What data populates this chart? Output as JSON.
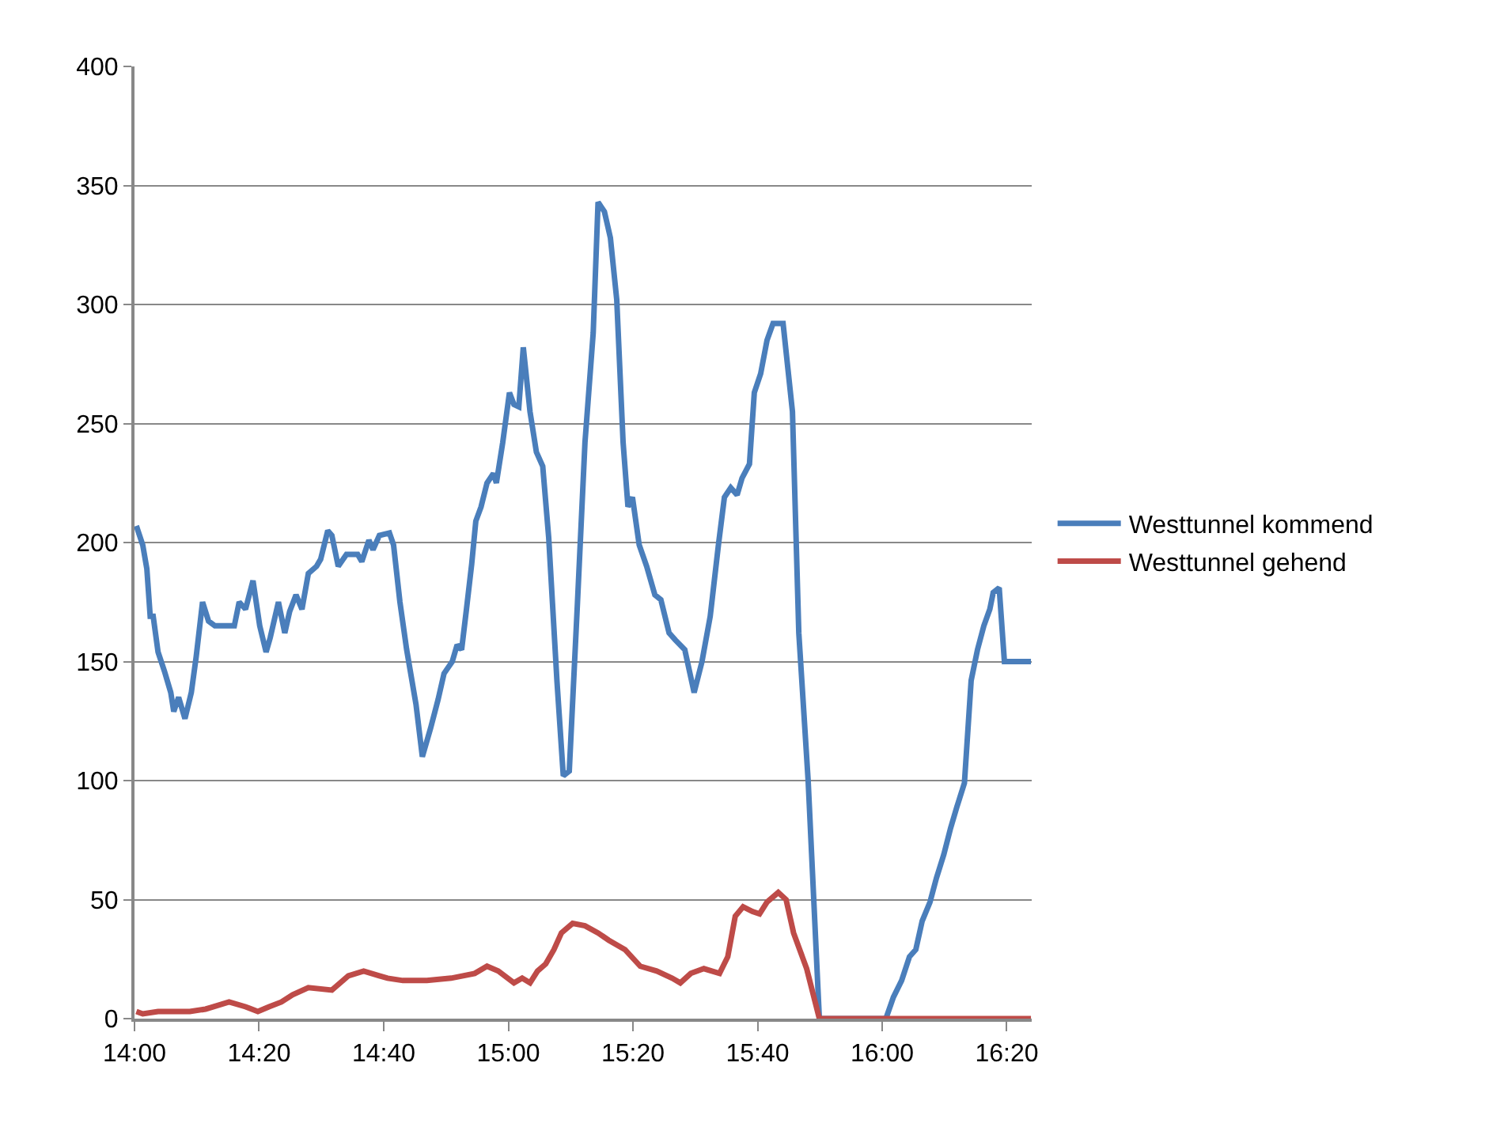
{
  "chart_data": {
    "type": "line",
    "xlim": [
      14,
      16.4
    ],
    "ylim": [
      0,
      400
    ],
    "yticks": [
      0,
      50,
      100,
      150,
      200,
      250,
      300,
      350,
      400
    ],
    "xticks": [
      {
        "value": 14,
        "label": "14:00"
      },
      {
        "value": 14.3333,
        "label": "14:20"
      },
      {
        "value": 14.6667,
        "label": "14:40"
      },
      {
        "value": 15,
        "label": "15:00"
      },
      {
        "value": 15.3333,
        "label": "15:20"
      },
      {
        "value": 15.6667,
        "label": "15:40"
      },
      {
        "value": 16,
        "label": "16:00"
      },
      {
        "value": 16.3333,
        "label": "16:20"
      }
    ],
    "grid": "y",
    "legend": "right",
    "marker": "none",
    "line_style": "solid",
    "series": [
      {
        "name": "Westtunnel kommend",
        "color": "#4a7ebb",
        "x": [
          14.005,
          14.022,
          14.033,
          14.042,
          14.05,
          14.063,
          14.08,
          14.097,
          14.105,
          14.118,
          14.135,
          14.152,
          14.165,
          14.182,
          14.198,
          14.215,
          14.267,
          14.28,
          14.297,
          14.317,
          14.335,
          14.352,
          14.363,
          14.385,
          14.402,
          14.415,
          14.432,
          14.448,
          14.465,
          14.487,
          14.498,
          14.517,
          14.528,
          14.545,
          14.567,
          14.597,
          14.608,
          14.627,
          14.638,
          14.655,
          14.682,
          14.693,
          14.71,
          14.728,
          14.753,
          14.77,
          14.792,
          14.812,
          14.828,
          14.85,
          14.863,
          14.875,
          14.888,
          14.902,
          14.913,
          14.927,
          14.943,
          14.96,
          14.968,
          14.985,
          15.003,
          15.015,
          15.028,
          15.04,
          15.058,
          15.075,
          15.092,
          15.108,
          15.13,
          15.147,
          15.163,
          15.185,
          15.205,
          15.227,
          15.24,
          15.257,
          15.273,
          15.29,
          15.307,
          15.32,
          15.332,
          15.35,
          15.37,
          15.392,
          15.408,
          15.43,
          15.447,
          15.472,
          15.497,
          15.518,
          15.54,
          15.562,
          15.578,
          15.595,
          15.612,
          15.625,
          15.645,
          15.658,
          15.675,
          15.692,
          15.708,
          15.735,
          15.76,
          15.777,
          15.802,
          15.832,
          16.01,
          16.03,
          16.052,
          16.073,
          16.09,
          16.107,
          16.128,
          16.145,
          16.165,
          16.183,
          16.2,
          16.22,
          16.238,
          16.255,
          16.272,
          16.288,
          16.297,
          16.313,
          16.327,
          16.398
        ],
        "values": [
          207,
          199,
          189,
          169,
          169,
          154,
          146,
          137,
          129,
          135,
          126,
          137,
          152,
          175,
          167,
          165,
          165,
          175,
          172,
          184,
          165,
          154,
          160,
          175,
          162,
          171,
          178,
          172,
          187,
          190,
          193,
          205,
          203,
          190,
          195,
          195,
          192,
          201,
          197,
          203,
          204,
          199,
          175,
          155,
          132,
          110,
          122,
          134,
          145,
          150,
          157,
          155,
          172,
          191,
          209,
          215,
          225,
          229,
          225,
          242,
          263,
          258,
          257,
          282,
          255,
          238,
          232,
          202,
          142,
          102,
          104,
          175,
          242,
          288,
          343,
          339,
          328,
          302,
          242,
          215,
          219,
          199,
          190,
          178,
          176,
          162,
          159,
          155,
          137,
          150,
          169,
          199,
          219,
          223,
          220,
          227,
          233,
          263,
          271,
          285,
          292,
          292,
          255,
          162,
          100,
          0,
          0,
          9,
          16,
          26,
          29,
          41,
          49,
          59,
          69,
          80,
          89,
          99,
          142,
          155,
          165,
          172,
          179,
          181,
          150,
          150
        ]
      },
      {
        "name": "Westtunnel gehend",
        "color": "#be4b48",
        "x": [
          14.005,
          14.022,
          14.063,
          14.148,
          14.19,
          14.253,
          14.297,
          14.33,
          14.36,
          14.393,
          14.423,
          14.465,
          14.528,
          14.572,
          14.613,
          14.655,
          14.677,
          14.718,
          14.782,
          14.847,
          14.91,
          14.943,
          14.973,
          15.015,
          15.037,
          15.058,
          15.078,
          15.1,
          15.122,
          15.142,
          15.172,
          15.205,
          15.24,
          15.268,
          15.312,
          15.353,
          15.397,
          15.438,
          15.46,
          15.488,
          15.523,
          15.565,
          15.587,
          15.607,
          15.628,
          15.653,
          15.672,
          15.692,
          15.722,
          15.743,
          15.763,
          15.798,
          15.832,
          16.398
        ],
        "values": [
          3,
          2,
          3,
          3,
          4,
          7,
          5,
          3,
          5,
          7,
          10,
          13,
          12,
          18,
          20,
          18,
          17,
          16,
          16,
          17,
          19,
          22,
          20,
          15,
          17,
          15,
          20,
          23,
          29,
          36,
          40,
          39,
          36,
          33,
          29,
          22,
          20,
          17,
          15,
          19,
          21,
          19,
          26,
          43,
          47,
          45,
          44,
          49,
          53,
          50,
          36,
          21,
          0,
          0
        ]
      }
    ]
  }
}
